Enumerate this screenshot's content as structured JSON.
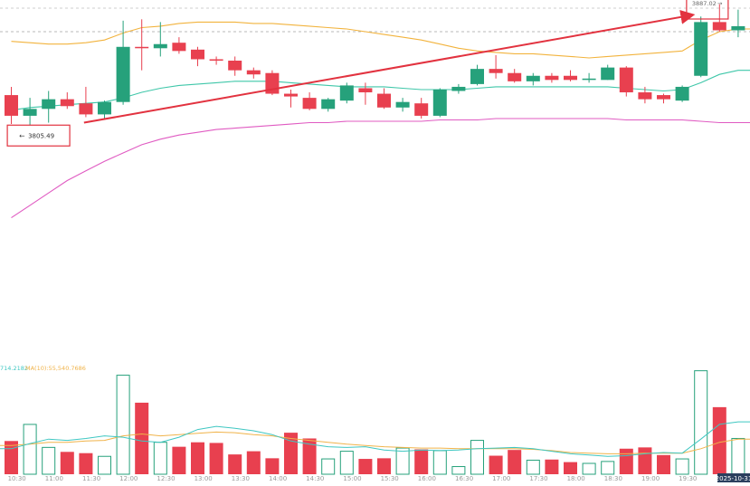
{
  "chart_data": {
    "type": "candlestick",
    "colors": {
      "up": "#26a17b",
      "down": "#e8404f",
      "band_upper": "#f2b33d",
      "band_middle": "#3fc7a9",
      "band_lower": "#e05bc2",
      "trendline": "#e2323f",
      "annotation_box": "#e2323f",
      "vol_ma5": "#3fc7c2",
      "vol_ma10": "#f0b34a",
      "grid": "#cfcfcf",
      "axis_text": "#9a9a9a"
    },
    "price_range": [
      3696,
      3893
    ],
    "candles": [
      {
        "o": 3824,
        "h": 3830,
        "l": 3803,
        "c": 3809
      },
      {
        "o": 3809,
        "h": 3822,
        "l": 3802,
        "c": 3814
      },
      {
        "o": 3814,
        "h": 3827,
        "l": 3804,
        "c": 3821
      },
      {
        "o": 3821,
        "h": 3826,
        "l": 3814,
        "c": 3816
      },
      {
        "o": 3818,
        "h": 3830,
        "l": 3808,
        "c": 3810
      },
      {
        "o": 3810,
        "h": 3820,
        "l": 3807,
        "c": 3819
      },
      {
        "o": 3819,
        "h": 3878,
        "l": 3817,
        "c": 3859
      },
      {
        "o": 3859,
        "h": 3879,
        "l": 3842,
        "c": 3858
      },
      {
        "o": 3858,
        "h": 3877,
        "l": 3852,
        "c": 3861
      },
      {
        "o": 3862,
        "h": 3866,
        "l": 3854,
        "c": 3856
      },
      {
        "o": 3857,
        "h": 3859,
        "l": 3845,
        "c": 3850
      },
      {
        "o": 3850,
        "h": 3852,
        "l": 3846,
        "c": 3849
      },
      {
        "o": 3849,
        "h": 3852,
        "l": 3838,
        "c": 3842
      },
      {
        "o": 3842,
        "h": 3844,
        "l": 3836,
        "c": 3839
      },
      {
        "o": 3840,
        "h": 3842,
        "l": 3824,
        "c": 3825
      },
      {
        "o": 3825,
        "h": 3828,
        "l": 3815,
        "c": 3823
      },
      {
        "o": 3822,
        "h": 3826,
        "l": 3813,
        "c": 3814
      },
      {
        "o": 3814,
        "h": 3822,
        "l": 3812,
        "c": 3821
      },
      {
        "o": 3820,
        "h": 3833,
        "l": 3818,
        "c": 3831
      },
      {
        "o": 3829,
        "h": 3833,
        "l": 3817,
        "c": 3826
      },
      {
        "o": 3825,
        "h": 3829,
        "l": 3814,
        "c": 3815
      },
      {
        "o": 3815,
        "h": 3822,
        "l": 3812,
        "c": 3819
      },
      {
        "o": 3818,
        "h": 3822,
        "l": 3807,
        "c": 3809
      },
      {
        "o": 3809,
        "h": 3829,
        "l": 3808,
        "c": 3828
      },
      {
        "o": 3827,
        "h": 3832,
        "l": 3825,
        "c": 3830
      },
      {
        "o": 3832,
        "h": 3846,
        "l": 3831,
        "c": 3843
      },
      {
        "o": 3843,
        "h": 3853,
        "l": 3836,
        "c": 3840
      },
      {
        "o": 3840,
        "h": 3843,
        "l": 3833,
        "c": 3834
      },
      {
        "o": 3834,
        "h": 3840,
        "l": 3831,
        "c": 3838
      },
      {
        "o": 3838,
        "h": 3840,
        "l": 3833,
        "c": 3835
      },
      {
        "o": 3838,
        "h": 3842,
        "l": 3834,
        "c": 3835
      },
      {
        "o": 3835,
        "h": 3840,
        "l": 3833,
        "c": 3836
      },
      {
        "o": 3835,
        "h": 3846,
        "l": 3835,
        "c": 3844
      },
      {
        "o": 3844,
        "h": 3845,
        "l": 3823,
        "c": 3826
      },
      {
        "o": 3826,
        "h": 3830,
        "l": 3818,
        "c": 3821
      },
      {
        "o": 3824,
        "h": 3825,
        "l": 3818,
        "c": 3821
      },
      {
        "o": 3820,
        "h": 3831,
        "l": 3819,
        "c": 3830
      },
      {
        "o": 3838,
        "h": 3881,
        "l": 3837,
        "c": 3877
      },
      {
        "o": 3877,
        "h": 3890,
        "l": 3870,
        "c": 3871
      },
      {
        "o": 3871,
        "h": 3886,
        "l": 3866,
        "c": 3874
      }
    ],
    "bollinger": {
      "upper": [
        3863,
        3862,
        3861,
        3861,
        3862,
        3864,
        3869,
        3873,
        3874,
        3876,
        3877,
        3877,
        3877,
        3876,
        3876,
        3875,
        3874,
        3873,
        3872,
        3870,
        3868,
        3866,
        3864,
        3861,
        3858,
        3856,
        3855,
        3854,
        3854,
        3853,
        3852,
        3851,
        3852,
        3853,
        3854,
        3855,
        3856,
        3864,
        3870,
        3872
      ],
      "middle": [
        3813,
        3815,
        3816,
        3817,
        3818,
        3819,
        3822,
        3826,
        3829,
        3831,
        3832,
        3833,
        3834,
        3834,
        3834,
        3833,
        3832,
        3831,
        3830,
        3830,
        3830,
        3829,
        3828,
        3828,
        3828,
        3829,
        3830,
        3830,
        3830,
        3830,
        3830,
        3830,
        3830,
        3829,
        3828,
        3827,
        3828,
        3833,
        3839,
        3842
      ],
      "lower": [
        3735,
        3744,
        3753,
        3762,
        3769,
        3776,
        3782,
        3788,
        3792,
        3795,
        3797,
        3799,
        3800,
        3801,
        3802,
        3803,
        3804,
        3804,
        3805,
        3805,
        3805,
        3805,
        3805,
        3806,
        3806,
        3806,
        3807,
        3807,
        3807,
        3807,
        3807,
        3807,
        3807,
        3806,
        3806,
        3806,
        3806,
        3805,
        3804,
        3804
      ]
    },
    "volumes": [
      52,
      78,
      42,
      35,
      33,
      28,
      155,
      112,
      50,
      43,
      50,
      49,
      31,
      36,
      25,
      65,
      56,
      24,
      36,
      24,
      25,
      41,
      39,
      37,
      12,
      53,
      29,
      38,
      22,
      23,
      19,
      17,
      20,
      40,
      42,
      30,
      24,
      162,
      105,
      56
    ],
    "vol_ma5": [
      40,
      48,
      55,
      53,
      56,
      60,
      58,
      52,
      50,
      58,
      70,
      75,
      72,
      68,
      62,
      52,
      47,
      43,
      42,
      43,
      38,
      36,
      38,
      37,
      38,
      40,
      41,
      42,
      40,
      36,
      32,
      30,
      28,
      29,
      32,
      34,
      33,
      55,
      78,
      82
    ],
    "vol_ma10": [
      45,
      47,
      50,
      50,
      52,
      53,
      60,
      63,
      60,
      62,
      64,
      66,
      65,
      62,
      60,
      56,
      53,
      50,
      47,
      45,
      43,
      42,
      41,
      41,
      40,
      40,
      40,
      40,
      39,
      37,
      34,
      33,
      32,
      32,
      33,
      33,
      33,
      40,
      50,
      55
    ],
    "vol_max": 170,
    "time_labels": [
      {
        "i": 0.3,
        "label": "10:30"
      },
      {
        "i": 2.3,
        "label": "11:00"
      },
      {
        "i": 4.3,
        "label": "11:30"
      },
      {
        "i": 6.3,
        "label": "12:00"
      },
      {
        "i": 8.3,
        "label": "12:30"
      },
      {
        "i": 10.3,
        "label": "13:00"
      },
      {
        "i": 12.3,
        "label": "13:30"
      },
      {
        "i": 14.3,
        "label": "14:00"
      },
      {
        "i": 16.3,
        "label": "14:30"
      },
      {
        "i": 18.3,
        "label": "15:00"
      },
      {
        "i": 20.3,
        "label": "15:30"
      },
      {
        "i": 22.3,
        "label": "16:00"
      },
      {
        "i": 24.3,
        "label": "16:30"
      },
      {
        "i": 26.3,
        "label": "17:00"
      },
      {
        "i": 28.3,
        "label": "17:30"
      },
      {
        "i": 30.3,
        "label": "18:00"
      },
      {
        "i": 32.3,
        "label": "18:30"
      },
      {
        "i": 34.3,
        "label": "19:00"
      },
      {
        "i": 36.3,
        "label": "19:30"
      }
    ],
    "date_badge": "2025-10-31",
    "low_marker": {
      "i": 1,
      "price": 3805.49,
      "text": "3805.49"
    },
    "high_marker": {
      "i": 37.3,
      "price": 3887.02,
      "text": "3887.02"
    },
    "vol_legend": {
      "ma5": "714.2182",
      "ma10": "MA(10):55,540.7686"
    },
    "trendline": {
      "from_i": 3.9,
      "from_price": 3804,
      "to_i": 36.5,
      "to_price": 3882
    }
  }
}
